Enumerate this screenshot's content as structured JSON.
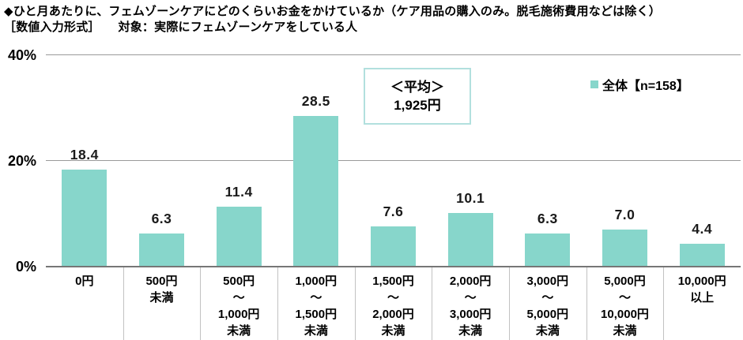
{
  "title": {
    "line1": "◆ひと月あたりに、フェムゾーンケアにどのくらいお金をかけているか（ケア用品の購入のみ。脱毛施術費用などは除く）",
    "line2": "［数値入力形式］　　対象：実際にフェムゾーンケアをしている人"
  },
  "legend": {
    "label": "全体【n=158】",
    "swatch_color": "#87d6cb"
  },
  "average_box": {
    "line1": "＜平均＞",
    "line2": "1,925円"
  },
  "colors": {
    "bar": "#87d6cb",
    "gridline": "#9a9a9a",
    "axis_line": "#767676",
    "divider": "#c2c2c2",
    "avg_box_border": "#b2e0de"
  },
  "chart_data": {
    "type": "bar",
    "title": "ひと月あたりに、フェムゾーンケアにどのくらいお金をかけているか（ケア用品の購入のみ。脱毛施術費用などは除く）",
    "series_name": "全体【n=158】",
    "n": 158,
    "average_label": "＜平均＞ 1,925円",
    "categories": [
      [
        "0円"
      ],
      [
        "500円",
        "未満"
      ],
      [
        "500円",
        "～",
        "1,000円",
        "未満"
      ],
      [
        "1,000円",
        "～",
        "1,500円",
        "未満"
      ],
      [
        "1,500円",
        "～",
        "2,000円",
        "未満"
      ],
      [
        "2,000円",
        "～",
        "3,000円",
        "未満"
      ],
      [
        "3,000円",
        "～",
        "5,000円",
        "未満"
      ],
      [
        "5,000円",
        "～",
        "10,000円",
        "未満"
      ],
      [
        "10,000円",
        "以上"
      ]
    ],
    "values": [
      18.4,
      6.3,
      11.4,
      28.5,
      7.6,
      10.1,
      6.3,
      7.0,
      4.4
    ],
    "unit": "%",
    "xlabel": "",
    "ylabel": "",
    "ylim": [
      0,
      40
    ],
    "yticks": [
      0,
      20,
      40
    ],
    "ytick_labels": [
      "0%",
      "20%",
      "40%"
    ],
    "grid": true,
    "legend_position": "top-right",
    "bar_color": "#87d6cb"
  }
}
